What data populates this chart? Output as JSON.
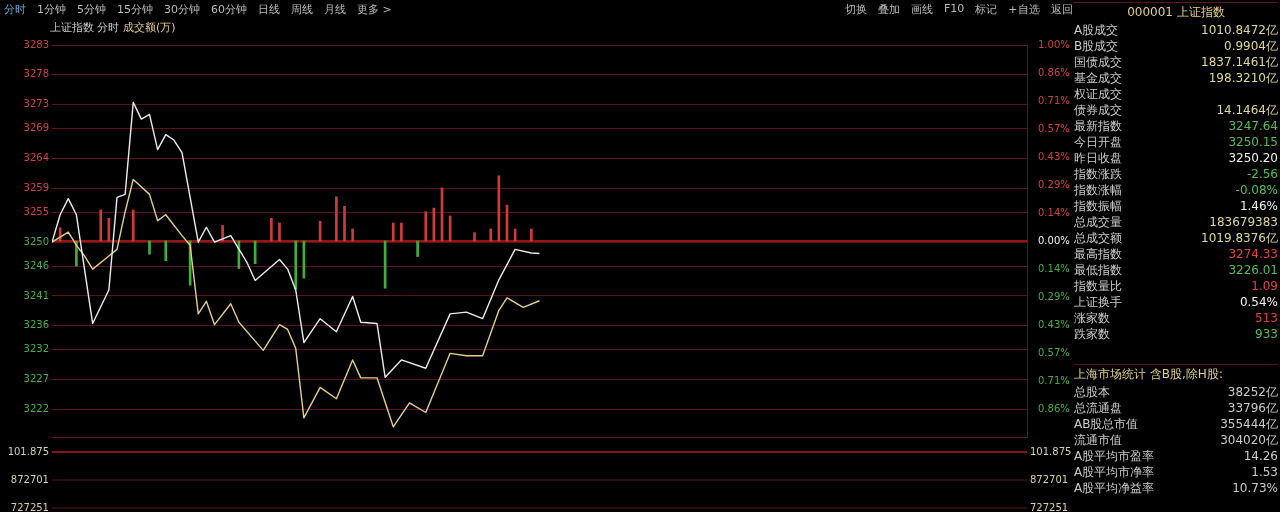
{
  "chart_data": [
    {
      "type": "line",
      "title": "上证指数 分时",
      "subtitle": "成交额(万)",
      "categories": [
        null,
        null,
        null,
        null,
        null,
        null,
        null,
        null,
        null,
        null,
        null,
        null,
        null,
        null,
        null,
        null,
        null,
        null,
        null,
        null,
        null,
        null,
        null,
        null,
        null,
        null,
        null,
        null,
        null,
        null,
        null,
        null,
        null,
        null,
        null,
        null,
        null,
        null,
        null,
        null,
        null,
        null,
        null,
        null,
        null,
        null,
        null,
        null,
        null,
        null,
        null,
        null,
        null,
        null,
        null,
        null,
        null,
        null,
        null,
        null,
        null,
        null,
        null,
        null,
        null,
        null,
        null,
        null,
        null,
        null,
        null,
        null,
        null,
        null,
        null,
        null,
        null,
        null,
        null,
        null,
        null,
        null,
        null,
        null,
        null,
        null,
        null,
        null,
        null,
        null,
        null,
        null,
        null,
        null,
        null,
        null,
        null,
        null,
        null,
        null,
        null,
        null,
        null,
        null,
        null,
        null,
        null,
        null,
        null,
        null,
        null,
        null,
        null,
        null,
        null,
        null,
        null,
        null,
        null,
        null,
        null
      ],
      "ylim": [
        3217.4,
        3283
      ],
      "yticks": [
        3283,
        3278,
        3273,
        3269,
        3264,
        3259,
        3255,
        3250,
        3246,
        3241,
        3236,
        3232,
        3227,
        3222
      ],
      "y2lim": [
        -1,
        1
      ],
      "y2ticks": [
        {
          "value": 1,
          "label": "1.00%"
        },
        {
          "value": 0.8571,
          "label": "0.86%"
        },
        {
          "value": 0.7143,
          "label": "0.71%"
        },
        {
          "value": 0.5714,
          "label": "0.57%"
        },
        {
          "value": 0.4286,
          "label": "0.43%"
        },
        {
          "value": 0.2857,
          "label": "0.29%"
        },
        {
          "value": 0.1429,
          "label": "0.14%"
        },
        {
          "value": 0,
          "label": "0.00%"
        },
        {
          "value": -0.1429,
          "label": "0.14%"
        },
        {
          "value": -0.2857,
          "label": "0.29%"
        },
        {
          "value": -0.4286,
          "label": "0.43%"
        },
        {
          "value": -0.5714,
          "label": "0.57%"
        },
        {
          "value": -0.7143,
          "label": "0.71%"
        },
        {
          "value": -0.8571,
          "label": "0.86%"
        }
      ],
      "grid": "y",
      "ref_lines": [
        {
          "axis": "y",
          "value": 3250.2,
          "color": "#c81e1e"
        }
      ],
      "series": [
        {
          "type": "bar",
          "color": "#d03a3a",
          "values": [
            null,
            2.2,
            null,
            null,
            null,
            null,
            5.2,
            3.8,
            null,
            null,
            5.2,
            null,
            null,
            null,
            null,
            null,
            null,
            null,
            null,
            null,
            null,
            2.6,
            null,
            null,
            null,
            null,
            null,
            3.8,
            3.0,
            null,
            null,
            null,
            null,
            3.3,
            null,
            7.4,
            5.8,
            2.0,
            null,
            null,
            null,
            null,
            3.0,
            3.0,
            null,
            null,
            4.9,
            5.5,
            8.9,
            4.2,
            null,
            null,
            1.4,
            null,
            2.0,
            10.9,
            6.0,
            2.0,
            null,
            2.0,
            null,
            null,
            null,
            null,
            null,
            null,
            null,
            null,
            null,
            null,
            null,
            null,
            null,
            null,
            null,
            null,
            null,
            null,
            null,
            null,
            null,
            null,
            null,
            null,
            null,
            null,
            null,
            null,
            null,
            null,
            null,
            null,
            null,
            null,
            null,
            null,
            null,
            null,
            null,
            null,
            null,
            null,
            null,
            null,
            null,
            null,
            null,
            null,
            null,
            null,
            null,
            null,
            null,
            null,
            null,
            null,
            null,
            null,
            null,
            null,
            null
          ],
          "base": [
            null,
            3250.2,
            null,
            null,
            null,
            null,
            3250.2,
            3250.2,
            null,
            null,
            3250.2,
            null,
            null,
            null,
            null,
            null,
            null,
            null,
            null,
            null,
            null,
            3250.2,
            null,
            null,
            null,
            null,
            null,
            3250.2,
            3250.2,
            null,
            null,
            null,
            null,
            3250.2,
            null,
            3250.2,
            3250.2,
            3250.2,
            null,
            null,
            null,
            null,
            3250.2,
            3250.2,
            null,
            null,
            3250.2,
            3250.2,
            3250.2,
            3250.2,
            null,
            null,
            3250.2,
            null,
            3250.2,
            3250.2,
            3250.2,
            3250.2,
            null,
            3250.2,
            null,
            null,
            null,
            null,
            null,
            null,
            null,
            null,
            null,
            null,
            null,
            null,
            null,
            null,
            null,
            null,
            null,
            null,
            null,
            null,
            null,
            null,
            null,
            null,
            null,
            null,
            null,
            null,
            null,
            null,
            null,
            null,
            null,
            null,
            null,
            null,
            null,
            null,
            null,
            null,
            null,
            null,
            null,
            null,
            null,
            null,
            null,
            null,
            null,
            null,
            null,
            null,
            null,
            null,
            null,
            null,
            null,
            null,
            null,
            null,
            null
          ]
        },
        {
          "type": "bar",
          "color": "#3fae3f",
          "values": [
            null,
            null,
            null,
            -4.2,
            null,
            null,
            null,
            null,
            null,
            null,
            null,
            null,
            -2.2,
            null,
            -3.3,
            null,
            null,
            -7.4,
            null,
            null,
            null,
            null,
            null,
            -4.6,
            null,
            -3.8,
            null,
            null,
            null,
            null,
            -8.1,
            -6.2,
            null,
            null,
            null,
            null,
            null,
            null,
            null,
            null,
            null,
            -7.9,
            null,
            null,
            null,
            -2.6,
            null,
            null,
            null,
            null,
            null,
            null,
            null,
            null,
            null,
            null,
            null,
            null,
            null,
            null,
            null,
            null,
            null,
            null,
            null,
            null,
            null,
            null,
            null,
            null,
            null,
            null,
            null,
            null,
            null,
            null,
            null,
            null,
            null,
            null,
            null,
            null,
            null,
            null,
            null,
            null,
            null,
            null,
            null,
            null,
            null,
            null,
            null,
            null,
            null,
            null,
            null,
            null,
            null,
            null,
            null,
            null,
            null,
            null,
            null,
            null,
            null,
            null,
            null,
            null,
            null,
            null,
            null,
            null,
            null,
            null,
            null,
            null,
            null,
            null,
            null
          ],
          "base": [
            null,
            null,
            null,
            3250.2,
            null,
            null,
            null,
            null,
            null,
            null,
            null,
            null,
            3250.2,
            null,
            3250.2,
            null,
            null,
            3250.2,
            null,
            null,
            null,
            null,
            null,
            3250.2,
            null,
            3250.2,
            null,
            null,
            null,
            null,
            3250.2,
            3250.2,
            null,
            null,
            null,
            null,
            null,
            null,
            null,
            null,
            null,
            3250.2,
            null,
            null,
            null,
            3250.2,
            null,
            null,
            null,
            null,
            null,
            null,
            null,
            null,
            null,
            null,
            null,
            null,
            null,
            null,
            null,
            null,
            null,
            null,
            null,
            null,
            null,
            null,
            null,
            null,
            null,
            null,
            null,
            null,
            null,
            null,
            null,
            null,
            null,
            null,
            null,
            null,
            null,
            null,
            null,
            null,
            null,
            null,
            null,
            null,
            null,
            null,
            null,
            null,
            null,
            null,
            null,
            null,
            null,
            null,
            null,
            null,
            null,
            null,
            null,
            null,
            null,
            null,
            null,
            null,
            null,
            null,
            null,
            null,
            null,
            null,
            null,
            null,
            null,
            null,
            null
          ]
        },
        {
          "type": "line",
          "color": "#ececec",
          "values": [
            3250.0,
            3254.6,
            3257.3,
            3254.6,
            null,
            3236.4,
            null,
            3242.0,
            3257.5,
            3258.0,
            3273.4,
            3270.6,
            3271.4,
            3265.5,
            3268.0,
            3267.1,
            3265.0,
            null,
            3250.0,
            3252.5,
            3250.0,
            null,
            3251.1,
            null,
            3246.6,
            3243.6,
            null,
            null,
            3247.1,
            3245.5,
            3242.0,
            3233.2,
            null,
            3237.2,
            null,
            3235.0,
            null,
            3240.9,
            3236.6,
            null,
            3236.4,
            3227.4,
            null,
            3230.3,
            null,
            null,
            3228.9,
            null,
            null,
            3238.0,
            null,
            3238.3,
            null,
            3237.2,
            null,
            3243.7,
            null,
            3248.8,
            null,
            3248.2,
            3248.1,
            null,
            null,
            null,
            null,
            null,
            null,
            null,
            null,
            null,
            null,
            null,
            null,
            null,
            null,
            null,
            null,
            null,
            null,
            null,
            null,
            null,
            null,
            null,
            null,
            null,
            null,
            null,
            null,
            null,
            null,
            null,
            null,
            null,
            null,
            null,
            null,
            null,
            null,
            null,
            null,
            null,
            null,
            null,
            null,
            null,
            null,
            null,
            null,
            null,
            null,
            null,
            null,
            null,
            null,
            null,
            null,
            null,
            null,
            null,
            null
          ]
        },
        {
          "type": "line",
          "color": "#e3cf86",
          "values": [
            3250.0,
            null,
            3251.7,
            3249.5,
            3247.7,
            3245.5,
            null,
            3247.7,
            3248.8,
            3255.1,
            3260.5,
            null,
            3258.0,
            3253.6,
            3254.6,
            null,
            3251.1,
            3249.5,
            3238.0,
            3240.1,
            3236.2,
            null,
            3239.7,
            3236.6,
            null,
            null,
            3231.9,
            null,
            3236.2,
            3235.4,
            3232.2,
            3220.6,
            null,
            3225.7,
            null,
            3223.8,
            null,
            3230.3,
            3227.3,
            null,
            3227.3,
            null,
            3219.1,
            null,
            3223.1,
            null,
            3221.5,
            null,
            null,
            3231.4,
            null,
            3231.0,
            null,
            3231.0,
            null,
            3238.6,
            3240.7,
            null,
            3239.1,
            null,
            3240.2,
            null,
            null,
            null,
            null,
            null,
            null,
            null,
            null,
            null,
            null,
            null,
            null,
            null,
            null,
            null,
            null,
            null,
            null,
            null,
            null,
            null,
            null,
            null,
            null,
            null,
            null,
            null,
            null,
            null,
            null,
            null,
            null,
            null,
            null,
            null,
            null,
            null,
            null,
            null,
            null,
            null,
            null,
            null,
            null,
            null,
            null,
            null,
            null,
            null,
            null,
            null,
            null,
            null,
            null,
            null,
            null,
            null,
            null,
            null,
            null
          ]
        }
      ]
    },
    {
      "type": "other",
      "annotations": [
        "101.875",
        "872701",
        "727251"
      ]
    },
    {
      "type": "other",
      "annotations": [
        "分时",
        "1分钟",
        "5分钟",
        "15分钟",
        "30分钟",
        "60分钟",
        "日线",
        "周线",
        "月线",
        "更多 >"
      ],
      "colors": [
        "#5fa8d3",
        "#bbbbbb",
        "#bbbbbb",
        "#bbbbbb",
        "#bbbbbb",
        "#bbbbbb",
        "#bbbbbb",
        "#bbbbbb",
        "#bbbbbb",
        "#bbbbbb"
      ]
    },
    {
      "type": "other",
      "annotations": [
        "切换",
        "叠加",
        "画线",
        "F10",
        "标记",
        "+自选",
        "返回"
      ]
    },
    {
      "type": "other",
      "title": "000001 上证指数",
      "annotations": [
        "A股成交",
        "1010.8472亿",
        "B股成交",
        "0.9904亿",
        "国债成交",
        "1837.1461亿",
        "基金成交",
        "198.3210亿",
        "权证成交",
        null,
        "债券成交",
        "14.1464亿",
        "最新指数",
        "3247.64",
        "今日开盘",
        "3250.15",
        "昨日收盘",
        "3250.20",
        "指数涨跌",
        "-2.56",
        "指数涨幅",
        "-0.08%",
        "指数振幅",
        "1.46%",
        "总成交量",
        "183679383",
        "总成交额",
        "1019.8376亿",
        "最高指数",
        "3274.33",
        "最低指数",
        "3226.01",
        "指数量比",
        "1.09",
        "上证换手",
        "0.54%",
        "涨家数",
        "513",
        "跌家数",
        "933"
      ],
      "colors": [
        "#cccccc",
        "#e0d890",
        "#cccccc",
        "#e0d890",
        "#cccccc",
        "#e0d890",
        "#cccccc",
        "#e0d890",
        "#cccccc",
        "#e0d890",
        "#cccccc",
        "#e0d890",
        "#cccccc",
        "#4fc04f",
        "#cccccc",
        "#4fc04f",
        "#cccccc",
        "#f0f0f0",
        "#cccccc",
        "#4fc04f",
        "#cccccc",
        "#4fc04f",
        "#cccccc",
        "#f0f0f0",
        "#cccccc",
        "#e0d890",
        "#cccccc",
        "#e0d890",
        "#cccccc",
        "#e04040",
        "#cccccc",
        "#4fc04f",
        "#cccccc",
        "#e04040",
        "#cccccc",
        "#f0f0f0",
        "#cccccc",
        "#e04040",
        "#cccccc",
        "#4fc04f"
      ]
    },
    {
      "type": "other",
      "title": "上海市场统计 含B股,除H股:",
      "annotations": [
        "总股本",
        "38252亿",
        "总流通盘",
        "33796亿",
        "AB股总市值",
        "355444亿",
        "流通市值",
        "304020亿",
        "A股平均市盈率",
        "14.26",
        "A股平均市净率",
        "1.53",
        "A股平均净益率",
        "10.73%"
      ]
    }
  ]
}
